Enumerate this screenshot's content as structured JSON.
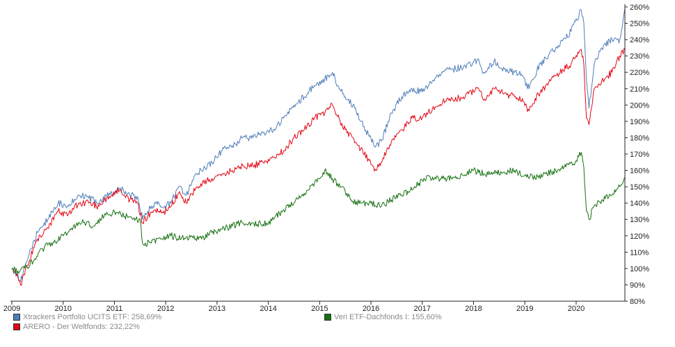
{
  "chart_data": {
    "type": "line",
    "title": "",
    "xlabel": "",
    "ylabel": "",
    "x_ticks": [
      "2009",
      "2010",
      "2011",
      "2012",
      "2013",
      "2014",
      "2015",
      "2016",
      "2017",
      "2018",
      "2019",
      "2020"
    ],
    "y_ticks": [
      "80%",
      "90%",
      "100%",
      "110%",
      "120%",
      "130%",
      "140%",
      "150%",
      "160%",
      "170%",
      "180%",
      "190%",
      "200%",
      "210%",
      "220%",
      "230%",
      "240%",
      "250%",
      "260%"
    ],
    "xlim": [
      2009.0,
      2020.95
    ],
    "ylim": [
      80,
      260
    ],
    "grid": false,
    "legend_position": "bottom",
    "series": [
      {
        "name": "Xtrackers Portfolio UCITS ETF: 258,69%",
        "color": "#4f7db8",
        "x": [
          2009.0,
          2009.1,
          2009.17,
          2009.3,
          2009.5,
          2009.7,
          2009.9,
          2010.1,
          2010.3,
          2010.5,
          2010.7,
          2010.9,
          2011.1,
          2011.3,
          2011.45,
          2011.55,
          2011.65,
          2011.8,
          2011.95,
          2012.1,
          2012.25,
          2012.4,
          2012.6,
          2012.9,
          2013.1,
          2013.3,
          2013.5,
          2013.7,
          2013.9,
          2014.1,
          2014.3,
          2014.5,
          2014.7,
          2014.9,
          2015.1,
          2015.25,
          2015.35,
          2015.5,
          2015.65,
          2015.8,
          2015.95,
          2016.1,
          2016.2,
          2016.4,
          2016.6,
          2016.8,
          2017.0,
          2017.2,
          2017.4,
          2017.6,
          2017.8,
          2018.0,
          2018.1,
          2018.2,
          2018.4,
          2018.6,
          2018.8,
          2018.95,
          2019.05,
          2019.3,
          2019.6,
          2019.9,
          2020.1,
          2020.15,
          2020.2,
          2020.25,
          2020.35,
          2020.5,
          2020.7,
          2020.85,
          2020.95
        ],
        "values": [
          100,
          96,
          92,
          105,
          122,
          130,
          140,
          138,
          145,
          143,
          140,
          146,
          149,
          145,
          144,
          130,
          135,
          140,
          137,
          140,
          150,
          145,
          158,
          165,
          172,
          175,
          180,
          180,
          183,
          185,
          192,
          200,
          205,
          212,
          216,
          220,
          212,
          205,
          200,
          190,
          182,
          175,
          178,
          195,
          205,
          210,
          208,
          215,
          220,
          222,
          223,
          226,
          228,
          220,
          227,
          222,
          220,
          218,
          210,
          225,
          235,
          245,
          258,
          250,
          215,
          198,
          225,
          235,
          240,
          240,
          259
        ]
      },
      {
        "name": "ARERO - Der Weltfonds: 232,22%",
        "color": "#e30613",
        "x": [
          2009.0,
          2009.1,
          2009.17,
          2009.3,
          2009.5,
          2009.7,
          2009.9,
          2010.1,
          2010.3,
          2010.5,
          2010.7,
          2010.9,
          2011.1,
          2011.3,
          2011.45,
          2011.55,
          2011.65,
          2011.8,
          2011.95,
          2012.1,
          2012.25,
          2012.4,
          2012.6,
          2012.9,
          2013.1,
          2013.3,
          2013.5,
          2013.7,
          2013.9,
          2014.1,
          2014.3,
          2014.5,
          2014.7,
          2014.9,
          2015.1,
          2015.25,
          2015.35,
          2015.5,
          2015.65,
          2015.8,
          2015.95,
          2016.1,
          2016.2,
          2016.4,
          2016.6,
          2016.8,
          2017.0,
          2017.2,
          2017.4,
          2017.6,
          2017.8,
          2018.0,
          2018.1,
          2018.2,
          2018.4,
          2018.6,
          2018.8,
          2018.95,
          2019.05,
          2019.3,
          2019.6,
          2019.9,
          2020.1,
          2020.15,
          2020.2,
          2020.25,
          2020.35,
          2020.5,
          2020.7,
          2020.85,
          2020.95
        ],
        "values": [
          100,
          97,
          90,
          102,
          118,
          125,
          135,
          133,
          140,
          140,
          138,
          144,
          148,
          142,
          140,
          128,
          132,
          136,
          134,
          138,
          146,
          140,
          150,
          155,
          158,
          160,
          163,
          163,
          165,
          168,
          172,
          180,
          185,
          192,
          195,
          200,
          193,
          185,
          180,
          173,
          167,
          160,
          165,
          178,
          185,
          192,
          192,
          198,
          202,
          203,
          205,
          208,
          210,
          203,
          210,
          207,
          205,
          204,
          196,
          208,
          218,
          225,
          234,
          225,
          192,
          188,
          210,
          215,
          220,
          230,
          234
        ]
      },
      {
        "name": "Veri ETF-Dachfonds I: 155,60%",
        "color": "#157010",
        "x": [
          2009.0,
          2009.15,
          2009.3,
          2009.45,
          2009.6,
          2009.8,
          2010.0,
          2010.2,
          2010.4,
          2010.6,
          2010.8,
          2011.0,
          2011.2,
          2011.35,
          2011.5,
          2011.55,
          2011.7,
          2011.9,
          2012.1,
          2012.3,
          2012.5,
          2012.7,
          2012.9,
          2013.1,
          2013.3,
          2013.5,
          2013.7,
          2013.9,
          2014.1,
          2014.3,
          2014.5,
          2014.7,
          2014.9,
          2015.1,
          2015.25,
          2015.35,
          2015.5,
          2015.6,
          2015.8,
          2016.0,
          2016.2,
          2016.4,
          2016.6,
          2016.8,
          2017.0,
          2017.2,
          2017.4,
          2017.6,
          2017.8,
          2018.0,
          2018.2,
          2018.4,
          2018.6,
          2018.8,
          2019.0,
          2019.2,
          2019.4,
          2019.6,
          2019.8,
          2020.0,
          2020.1,
          2020.15,
          2020.2,
          2020.25,
          2020.35,
          2020.5,
          2020.7,
          2020.85,
          2020.95
        ],
        "values": [
          100,
          98,
          101,
          106,
          112,
          116,
          120,
          126,
          128,
          126,
          132,
          135,
          132,
          130,
          130,
          115,
          116,
          118,
          120,
          118,
          120,
          118,
          122,
          124,
          126,
          128,
          128,
          127,
          130,
          136,
          140,
          146,
          152,
          160,
          155,
          152,
          147,
          142,
          140,
          140,
          138,
          142,
          145,
          148,
          154,
          156,
          155,
          156,
          157,
          160,
          158,
          158,
          159,
          160,
          157,
          155,
          158,
          160,
          162,
          166,
          171,
          162,
          135,
          130,
          138,
          142,
          145,
          150,
          156
        ]
      }
    ]
  }
}
